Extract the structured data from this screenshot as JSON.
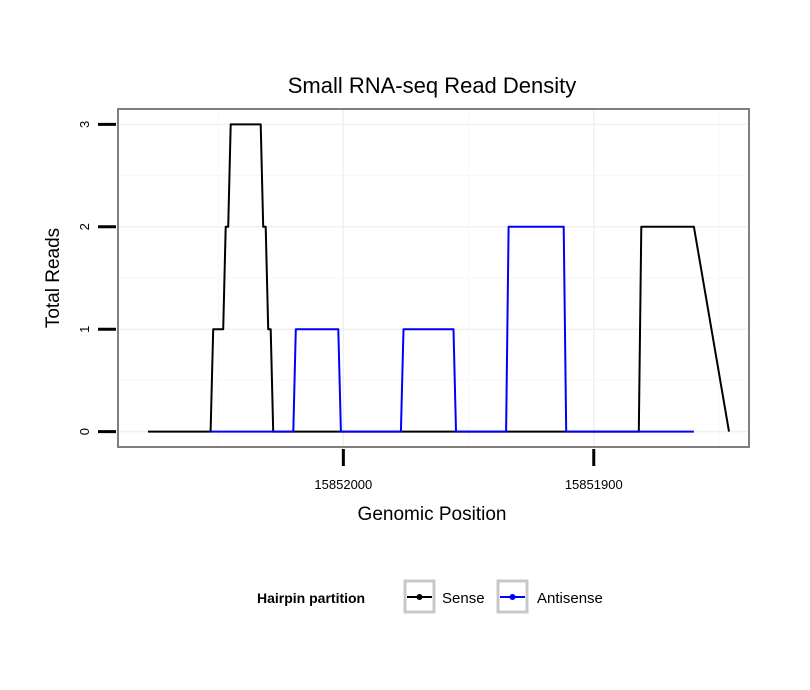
{
  "chart_data": {
    "type": "line",
    "title": "Small RNA-seq Read Density",
    "xlabel": "Genomic Position",
    "ylabel": "Total Reads",
    "x_reversed": true,
    "xlim": [
      15852090,
      15851838
    ],
    "ylim": [
      -0.15,
      3.15
    ],
    "x_ticks": [
      15852000,
      15851900
    ],
    "x_tick_labels": [
      "15852000",
      "15851900"
    ],
    "y_ticks": [
      0,
      1,
      2,
      3
    ],
    "y_tick_labels": [
      "0",
      "1",
      "2",
      "3"
    ],
    "grid": true,
    "series": [
      {
        "name": "Sense",
        "color": "#000000",
        "x": [
          15852078,
          15852053,
          15852052,
          15852049,
          15852048,
          15852047,
          15852046,
          15852045,
          15852033,
          15852032,
          15852031,
          15852030,
          15852029,
          15852028,
          15851903,
          15851882,
          15851881,
          15851860,
          15851846
        ],
        "y": [
          0,
          0,
          1,
          1,
          1,
          2,
          2,
          3,
          3,
          2,
          2,
          1,
          1,
          0,
          0,
          0,
          2,
          2,
          0
        ]
      },
      {
        "name": "Antisense",
        "color": "#0000ff",
        "x": [
          15852053,
          15852020,
          15852019,
          15852002,
          15852001,
          15851977,
          15851976,
          15851956,
          15851955,
          15851935,
          15851934,
          15851912,
          15851911,
          15851860
        ],
        "y": [
          0,
          0,
          1,
          1,
          0,
          0,
          1,
          1,
          0,
          0,
          2,
          2,
          0,
          0
        ]
      }
    ],
    "legend": {
      "title": "Hairpin partition",
      "position": "bottom",
      "entries": [
        "Sense",
        "Antisense"
      ]
    }
  }
}
